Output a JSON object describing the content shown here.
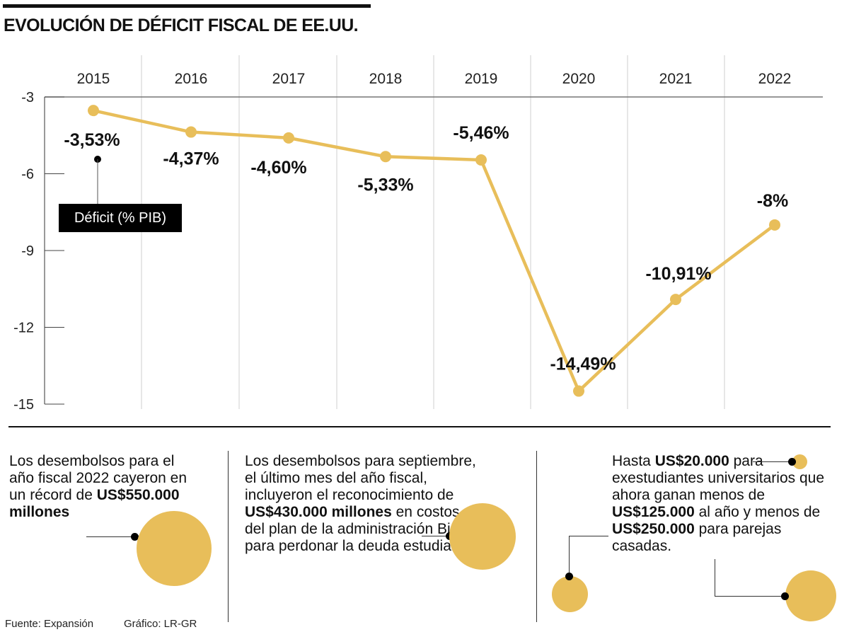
{
  "title": "EVOLUCIÓN DE DÉFICIT FISCAL DE EE.UU.",
  "chart_data": {
    "type": "line",
    "title": "EVOLUCIÓN DE DÉFICIT FISCAL DE EE.UU.",
    "x": [
      "2015",
      "2016",
      "2017",
      "2018",
      "2019",
      "2020",
      "2021",
      "2022"
    ],
    "series": [
      {
        "name": "Déficit (% PIB)",
        "values": [
          -3.53,
          -4.37,
          -4.6,
          -5.33,
          -5.46,
          -14.49,
          -10.91,
          -8.0
        ]
      }
    ],
    "data_labels": [
      "-3,53%",
      "-4,37%",
      "-4,60%",
      "-5,33%",
      "-5,46%",
      "-14,49%",
      "-10,91%",
      "-8%"
    ],
    "yticks": [
      "-3",
      "-6",
      "-9",
      "-12",
      "-15"
    ],
    "ytick_values": [
      -3,
      -6,
      -9,
      -12,
      -15
    ],
    "ylim": [
      -15,
      -3
    ],
    "xlabel": "",
    "ylabel": "",
    "legend": "Déficit (% PIB)",
    "legend_position": "left",
    "grid": "vertical",
    "line_color": "#e8be5a"
  },
  "notes": {
    "note1": {
      "text_before": "Los desembolsos para el año fiscal 2022 cayeron en un récord de ",
      "bold": "US$550.000 millones"
    },
    "note2": {
      "text_before": "Los desembolsos para septiembre, el último mes del año fiscal, incluyeron el reconocimiento de ",
      "bold": "US$430.000 millones",
      "text_after": " en costos del plan de la administración Biden  para perdonar la deuda estudiantil"
    },
    "note3": {
      "part1": "Hasta ",
      "bold1": "US$20.000",
      "part2": " para exestudiantes universitarios que ahora ganan menos de ",
      "bold2": "US$125.000",
      "part3": " al año y menos de ",
      "bold3": "US$250.000",
      "part4": " para parejas casadas."
    }
  },
  "footer": {
    "source": "Fuente: Expansión",
    "credit": "Gráfico: LR-GR"
  },
  "colors": {
    "accent": "#e8be5a",
    "text": "#111111"
  }
}
